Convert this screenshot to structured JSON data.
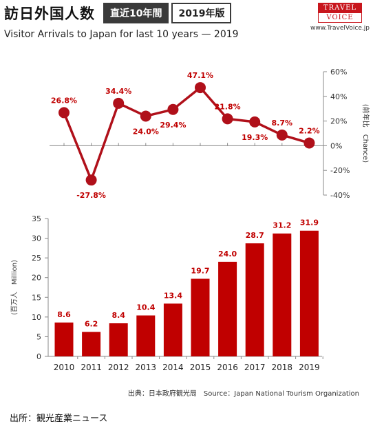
{
  "header": {
    "title": "訪日外国人数",
    "badge1": "直近10年間",
    "badge2": "2019年版",
    "subtitle": "Visitor Arrivals to Japan for last 10 years — 2019"
  },
  "logo": {
    "top": "TRAVEL",
    "bottom": "VOICE",
    "url": "www.TravelVoice.jp"
  },
  "colors": {
    "accent": "#c00000",
    "line": "#b0101a",
    "bar": "#c00000"
  },
  "chart_data": [
    {
      "type": "line",
      "x": [
        2010,
        2011,
        2012,
        2013,
        2014,
        2015,
        2016,
        2017,
        2018,
        2019
      ],
      "series": [
        {
          "values": [
            26.8,
            -27.8,
            34.4,
            24.0,
            29.4,
            47.1,
            21.8,
            19.3,
            8.7,
            2.2
          ]
        }
      ],
      "data_labels": [
        "26.8%",
        "-27.8%",
        "34.4%",
        "24.0%",
        "29.4%",
        "47.1%",
        "21.8%",
        "19.3%",
        "8.7%",
        "2.2%"
      ],
      "ylabel": "(前年比　Chance)",
      "ylim": [
        -40,
        60
      ],
      "yticks": [
        "60%",
        "40%",
        "20%",
        "0%",
        "-20%",
        "-40%"
      ],
      "axis_side": "right",
      "grid": false
    },
    {
      "type": "bar",
      "categories": [
        "2010",
        "2011",
        "2012",
        "2013",
        "2014",
        "2015",
        "2016",
        "2017",
        "2018",
        "2019"
      ],
      "values": [
        8.6,
        6.2,
        8.4,
        10.4,
        13.4,
        19.7,
        24.0,
        28.7,
        31.2,
        31.9
      ],
      "data_labels": [
        "8.6",
        "6.2",
        "8.4",
        "10.4",
        "13.4",
        "19.7",
        "24.0",
        "28.7",
        "31.2",
        "31.9"
      ],
      "ylabel": "(百万人　Million)",
      "ylim": [
        0,
        35
      ],
      "yticks": [
        "35",
        "30",
        "25",
        "20",
        "15",
        "10",
        "5",
        "0"
      ],
      "grid": false
    }
  ],
  "source_note": "出典：日本政府観光局　Source：Japan  National Tourism  Organization",
  "footer": "出所：観光産業ニュース"
}
